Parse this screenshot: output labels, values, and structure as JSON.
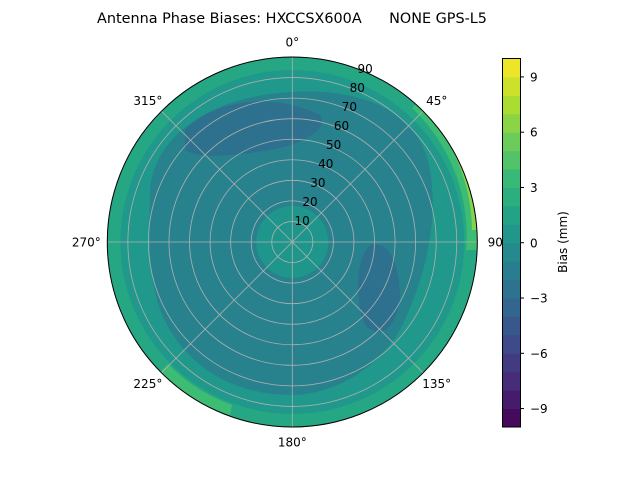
{
  "chart_data": {
    "type": "heatmap",
    "subtype": "polar-contourf",
    "title": "Antenna Phase Biases: HXCCSX600A      NONE GPS-L5",
    "theta_ticks": [
      "0°",
      "45°",
      "90°",
      "135°",
      "180°",
      "225°",
      "270°",
      "315°"
    ],
    "theta_tick_angles": [
      0,
      45,
      90,
      135,
      180,
      225,
      270,
      315
    ],
    "theta_direction": "clockwise",
    "theta_zero": "top",
    "r_ticks": [
      "10",
      "20",
      "30",
      "40",
      "50",
      "60",
      "70",
      "80",
      "90"
    ],
    "r_tick_values": [
      10,
      20,
      30,
      40,
      50,
      60,
      70,
      80,
      90
    ],
    "rlim": [
      0,
      90
    ],
    "grid": true,
    "colormap": "viridis",
    "colorbar": {
      "label": "Bias (mm)",
      "ticks": [
        "−9",
        "−6",
        "−3",
        "0",
        "3",
        "6",
        "9"
      ],
      "tick_values": [
        -9,
        -6,
        -3,
        0,
        3,
        6,
        9
      ],
      "clim": [
        -10,
        10
      ],
      "levels_step": 1
    },
    "field_summary": [
      {
        "region": "zenith (0-15°)",
        "bias_mm": 0.5
      },
      {
        "region": "mid elevation ring (20-70°)",
        "bias_mm": -1.5
      },
      {
        "region": "north-west patch (~330°, 40-65°)",
        "bias_mm": -2.5
      },
      {
        "region": "south-east patch (~110-130°, 40-70°)",
        "bias_mm": -2.5
      },
      {
        "region": "outer ring (75-90°)",
        "bias_mm": 1.5
      },
      {
        "region": "edge near 45-90° azimuth",
        "bias_mm": 7
      },
      {
        "region": "edge near 225° azimuth",
        "bias_mm": 4
      }
    ]
  }
}
